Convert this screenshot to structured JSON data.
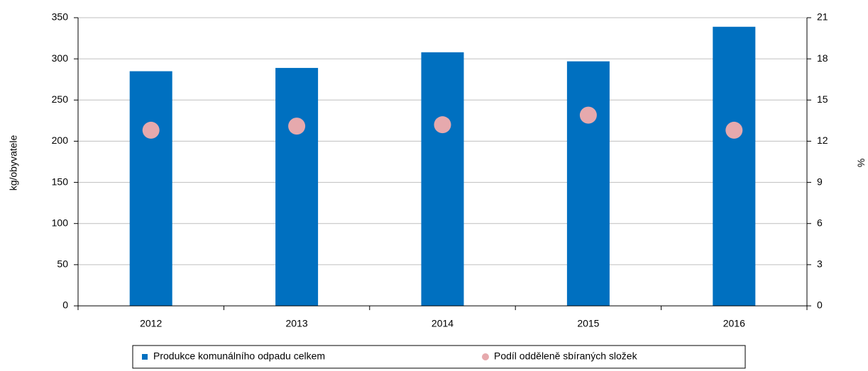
{
  "chart_data": {
    "type": "bar",
    "categories": [
      "2012",
      "2013",
      "2014",
      "2015",
      "2016"
    ],
    "series": [
      {
        "name": "Produkce komunálního odpadu celkem",
        "type": "bar",
        "color": "#0070c0",
        "values": [
          285,
          289,
          308,
          297,
          339
        ]
      },
      {
        "name": "Podíl odděleně sbíraných složek",
        "type": "scatter",
        "axis": "y2",
        "color": "#e6a9ad",
        "values": [
          12.8,
          13.1,
          13.2,
          13.9,
          12.8
        ]
      }
    ],
    "ylabel": "kg/obyvatele",
    "y2label": "%",
    "ylim": [
      0,
      350
    ],
    "yticks": [
      0,
      50,
      100,
      150,
      200,
      250,
      300,
      350
    ],
    "y2lim": [
      0,
      21
    ],
    "y2ticks": [
      0,
      3,
      6,
      9,
      12,
      15,
      18,
      21
    ],
    "grid": true,
    "legend": "bottom"
  }
}
